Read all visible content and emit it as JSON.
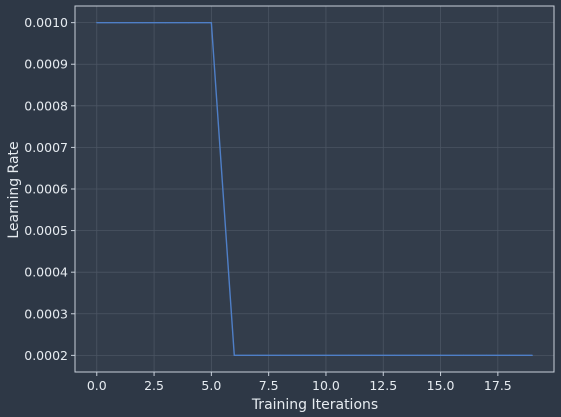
{
  "colors": {
    "background": "#2e3846",
    "plot_background": "#333d4b",
    "grid": "#4b5563",
    "spine": "#c8d0da",
    "text": "#e6ebf0",
    "line": "#4f7fc7"
  },
  "chart_data": {
    "type": "line",
    "title": "",
    "xlabel": "Training Iterations",
    "ylabel": "Learning Rate",
    "xlim": [
      -0.95,
      19.95
    ],
    "ylim": [
      0.00016,
      0.00104
    ],
    "grid": true,
    "x_ticks": [
      0.0,
      2.5,
      5.0,
      7.5,
      10.0,
      12.5,
      15.0,
      17.5
    ],
    "x_tick_labels": [
      "0.0",
      "2.5",
      "5.0",
      "7.5",
      "10.0",
      "12.5",
      "15.0",
      "17.5"
    ],
    "y_ticks": [
      0.0002,
      0.0003,
      0.0004,
      0.0005,
      0.0006,
      0.0007,
      0.0008,
      0.0009,
      0.001
    ],
    "y_tick_labels": [
      "0.0002",
      "0.0003",
      "0.0004",
      "0.0005",
      "0.0006",
      "0.0007",
      "0.0008",
      "0.0009",
      "0.0010"
    ],
    "x": [
      0,
      1,
      2,
      3,
      4,
      5,
      6,
      7,
      8,
      9,
      10,
      11,
      12,
      13,
      14,
      15,
      16,
      17,
      18,
      19
    ],
    "series": [
      {
        "values": [
          0.001,
          0.001,
          0.001,
          0.001,
          0.001,
          0.001,
          0.0002,
          0.0002,
          0.0002,
          0.0002,
          0.0002,
          0.0002,
          0.0002,
          0.0002,
          0.0002,
          0.0002,
          0.0002,
          0.0002,
          0.0002,
          0.0002
        ]
      }
    ]
  }
}
